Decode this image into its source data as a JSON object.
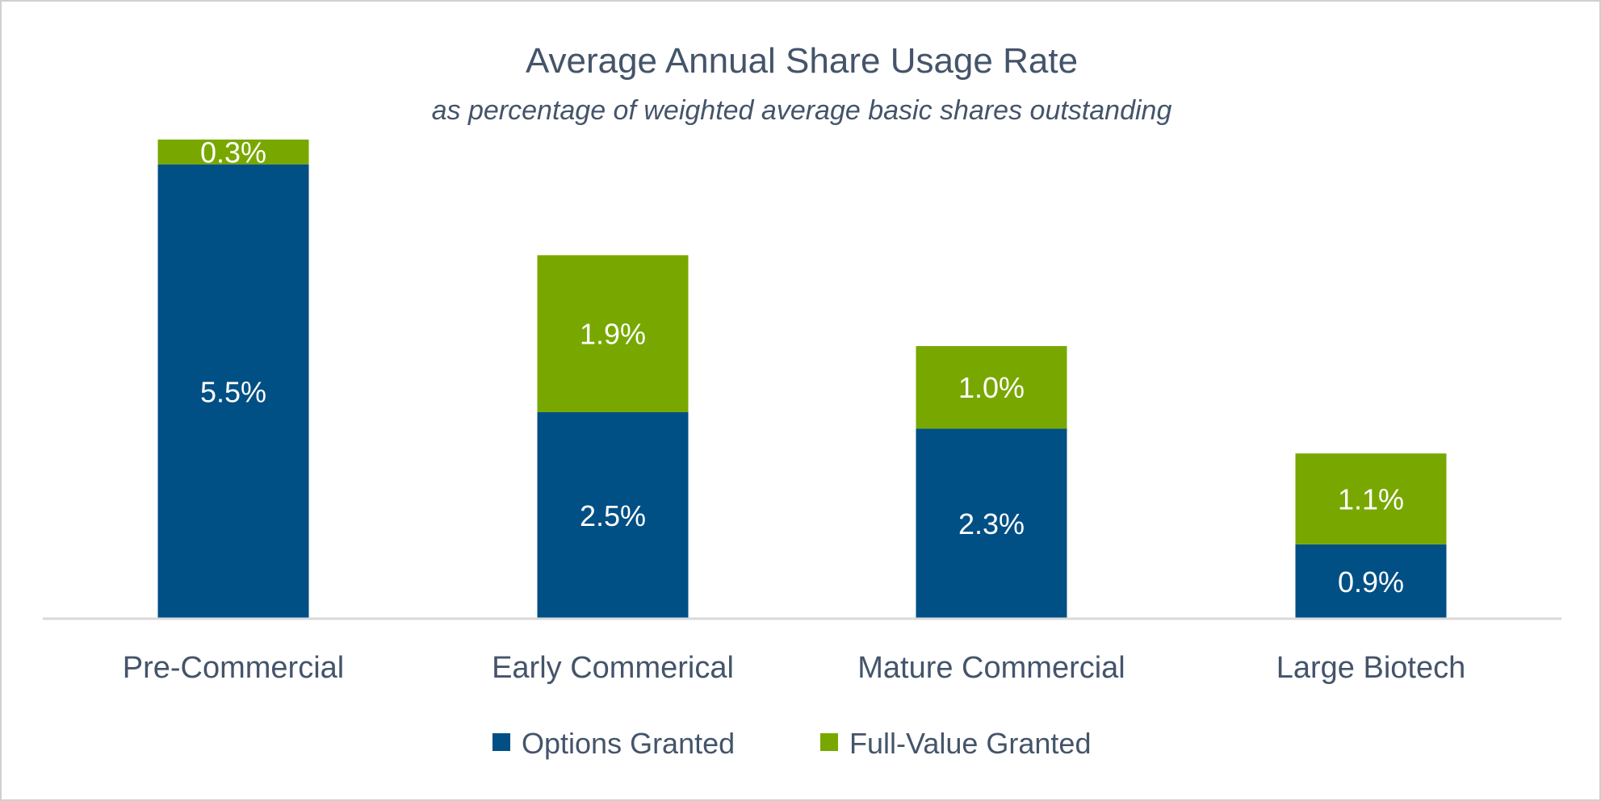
{
  "chart_data": {
    "type": "bar",
    "stacked": true,
    "title": "Average Annual Share Usage Rate",
    "subtitle": "as percentage of weighted average basic shares outstanding",
    "categories": [
      "Pre-Commercial",
      "Early Commerical",
      "Mature Commercial",
      "Large Biotech"
    ],
    "series": [
      {
        "name": "Options Granted",
        "values": [
          5.5,
          2.5,
          2.3,
          0.9
        ],
        "labels": [
          "5.5%",
          "2.5%",
          "2.3%",
          "0.9%"
        ],
        "color": "#004F85"
      },
      {
        "name": "Full-Value Granted",
        "values": [
          0.3,
          1.9,
          1.0,
          1.1
        ],
        "labels": [
          "0.3%",
          "1.9%",
          "1.0%",
          "1.1%"
        ],
        "color": "#78A800"
      }
    ],
    "xlabel": "",
    "ylabel": "",
    "ylim": [
      0,
      5.8
    ],
    "grid": false,
    "y_axis_visible": false,
    "legend": "bottom"
  }
}
